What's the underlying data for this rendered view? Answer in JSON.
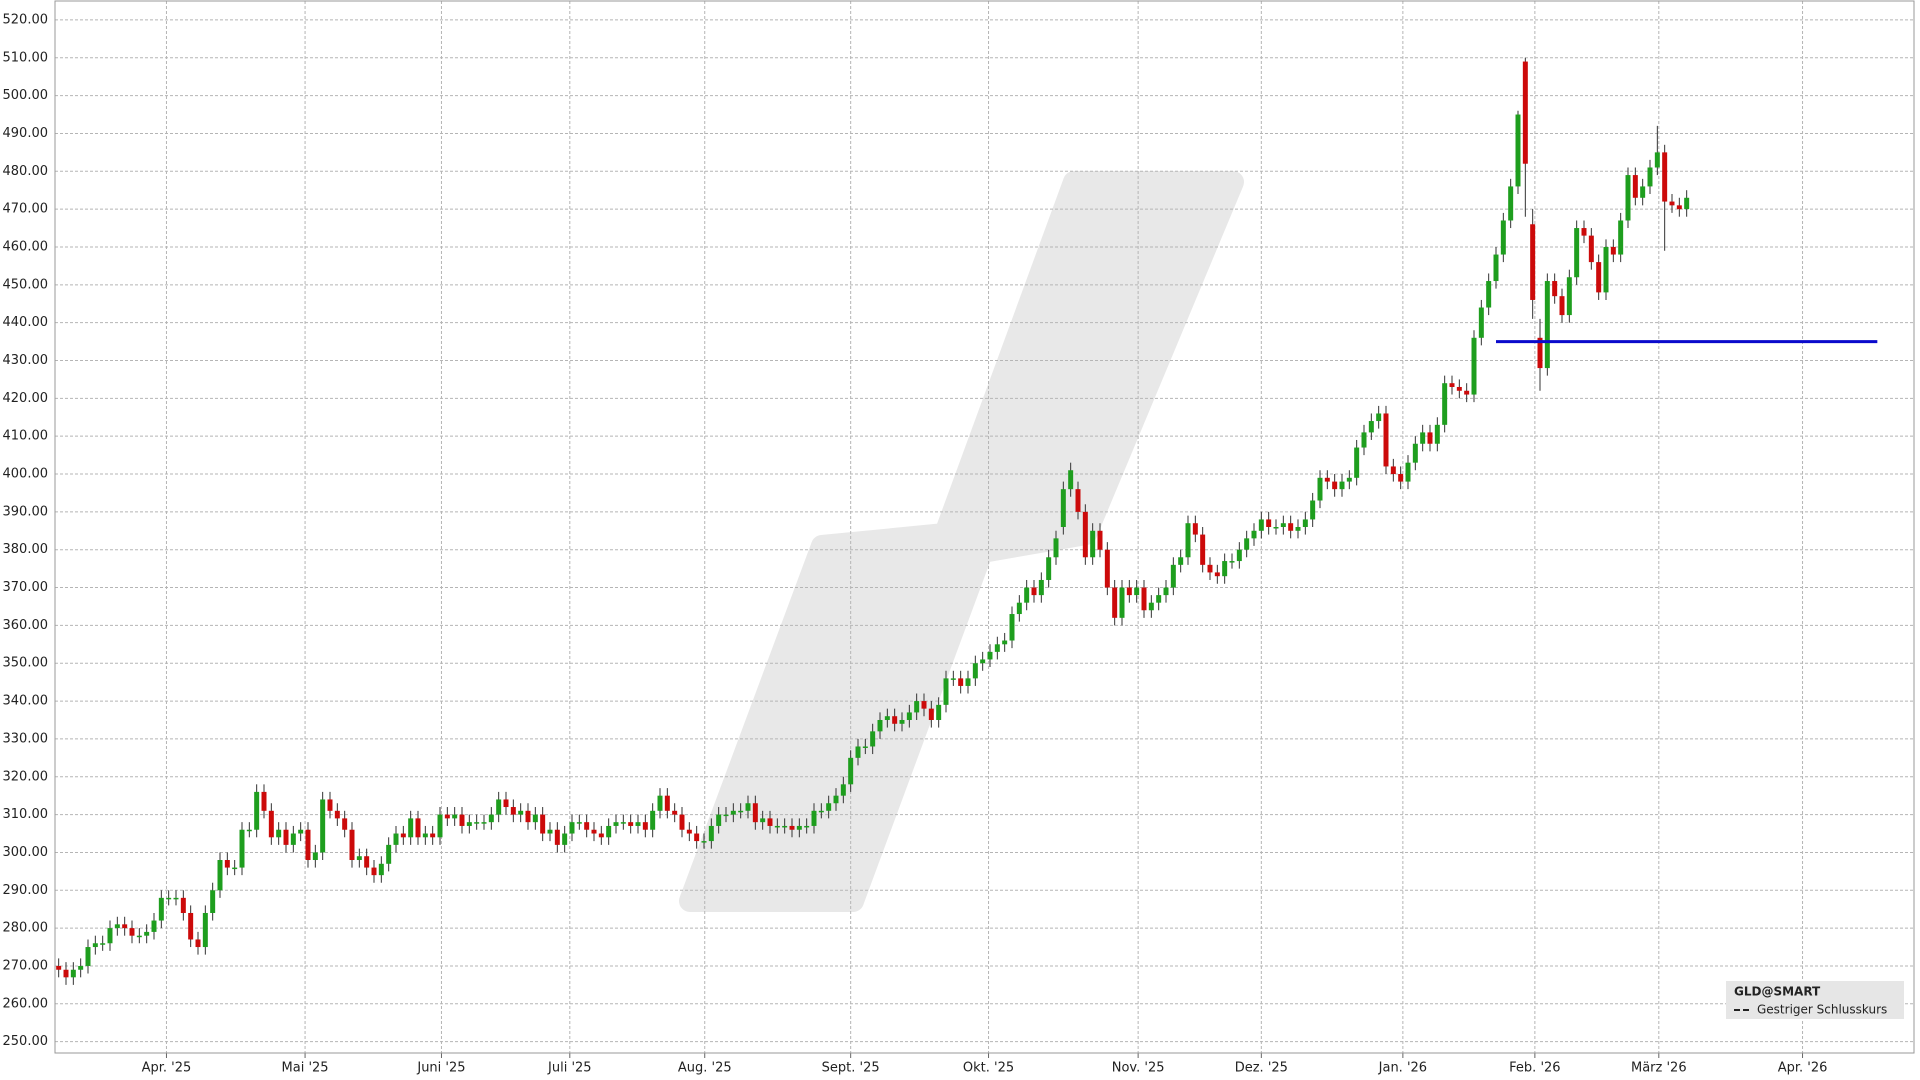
{
  "chart_data": {
    "type": "candlestick",
    "up_color": "#1e9e1e",
    "down_color": "#cc0a0a",
    "wick_color": "#333333",
    "grid": true,
    "xlim": [
      -0.5,
      253
    ],
    "ylim": [
      247,
      525
    ],
    "yticks": [
      {
        "value": 250,
        "label": "250.00"
      },
      {
        "value": 260,
        "label": "260.00"
      },
      {
        "value": 270,
        "label": "270.00"
      },
      {
        "value": 280,
        "label": "280.00"
      },
      {
        "value": 290,
        "label": "290.00"
      },
      {
        "value": 300,
        "label": "300.00"
      },
      {
        "value": 310,
        "label": "310.00"
      },
      {
        "value": 320,
        "label": "320.00"
      },
      {
        "value": 330,
        "label": "330.00"
      },
      {
        "value": 340,
        "label": "340.00"
      },
      {
        "value": 350,
        "label": "350.00"
      },
      {
        "value": 360,
        "label": "360.00"
      },
      {
        "value": 370,
        "label": "370.00"
      },
      {
        "value": 380,
        "label": "380.00"
      },
      {
        "value": 390,
        "label": "390.00"
      },
      {
        "value": 400,
        "label": "400.00"
      },
      {
        "value": 410,
        "label": "410.00"
      },
      {
        "value": 420,
        "label": "420.00"
      },
      {
        "value": 430,
        "label": "430.00"
      },
      {
        "value": 440,
        "label": "440.00"
      },
      {
        "value": 450,
        "label": "450.00"
      },
      {
        "value": 460,
        "label": "460.00"
      },
      {
        "value": 470,
        "label": "470.00"
      },
      {
        "value": 480,
        "label": "480.00"
      },
      {
        "value": 490,
        "label": "490.00"
      },
      {
        "value": 500,
        "label": "500.00"
      },
      {
        "value": 510,
        "label": "510.00"
      },
      {
        "value": 520,
        "label": "520.00"
      }
    ],
    "xticks": [
      {
        "value": 14.7,
        "label": "Apr. '25"
      },
      {
        "value": 33.6,
        "label": "Mai '25"
      },
      {
        "value": 52.2,
        "label": "Juni '25"
      },
      {
        "value": 69.7,
        "label": "Juli '25"
      },
      {
        "value": 88.1,
        "label": "Aug. '25"
      },
      {
        "value": 108.0,
        "label": "Sept. '25"
      },
      {
        "value": 126.8,
        "label": "Okt. '25"
      },
      {
        "value": 147.2,
        "label": "Nov. '25"
      },
      {
        "value": 164.0,
        "label": "Dez. '25"
      },
      {
        "value": 183.3,
        "label": "Jan. '26"
      },
      {
        "value": 201.3,
        "label": "Feb. '26"
      },
      {
        "value": 218.2,
        "label": "März '26"
      },
      {
        "value": 237.8,
        "label": "Apr. '26"
      }
    ],
    "open": [
      270,
      269,
      267,
      269,
      270,
      275,
      276,
      276,
      280,
      281,
      280,
      278,
      278,
      279,
      282,
      288,
      288,
      288,
      284,
      277,
      275,
      284,
      290,
      298,
      296,
      296,
      306,
      306,
      316,
      311,
      304,
      306,
      302,
      305,
      306,
      298,
      300,
      314,
      311,
      309,
      306,
      298,
      299,
      296,
      294,
      297,
      302,
      305,
      304,
      309,
      304,
      305,
      304,
      310,
      309,
      310,
      307,
      308,
      308,
      308,
      310,
      314,
      312,
      310,
      311,
      308,
      310,
      305,
      306,
      302,
      305,
      308,
      308,
      306,
      305,
      304,
      307,
      308,
      308,
      307,
      308,
      306,
      311,
      315,
      311,
      310,
      306,
      305,
      303,
      303,
      307,
      310,
      310,
      311,
      311,
      313,
      308,
      309,
      307,
      307,
      307,
      306,
      307,
      307,
      311,
      311,
      313,
      315,
      318,
      325,
      328,
      328,
      332,
      335,
      336,
      334,
      335,
      337,
      340,
      338,
      335,
      339,
      346,
      346,
      344,
      346,
      350,
      351,
      353,
      355,
      356,
      363,
      366,
      370,
      368,
      372,
      378,
      386,
      396,
      396,
      390,
      378,
      385,
      380,
      370,
      362,
      370,
      368,
      370,
      364,
      366,
      368,
      370,
      376,
      378,
      387,
      384,
      376,
      374,
      373,
      377,
      377,
      380,
      383,
      385,
      388,
      386,
      386,
      387,
      385,
      386,
      388,
      393,
      399,
      398,
      396,
      398,
      399,
      407,
      411,
      414,
      416,
      402,
      400,
      398,
      403,
      408,
      411,
      408,
      413,
      424,
      423,
      422,
      421,
      436,
      444,
      451,
      458,
      467,
      476,
      509,
      466,
      436,
      428,
      451,
      447,
      442,
      452,
      465,
      463,
      456,
      448,
      460,
      458,
      467,
      479,
      473,
      476,
      481,
      485,
      472,
      471,
      470
    ],
    "high": [
      272,
      271,
      271,
      272,
      277,
      278,
      278,
      282,
      283,
      283,
      282,
      280,
      281,
      284,
      290,
      290,
      290,
      290,
      286,
      279,
      286,
      292,
      300,
      300,
      298,
      308,
      308,
      318,
      318,
      313,
      308,
      308,
      307,
      308,
      308,
      302,
      316,
      316,
      313,
      311,
      308,
      301,
      301,
      298,
      299,
      304,
      307,
      307,
      311,
      311,
      307,
      307,
      312,
      312,
      312,
      312,
      310,
      310,
      310,
      312,
      316,
      316,
      314,
      313,
      313,
      312,
      312,
      308,
      308,
      307,
      310,
      310,
      310,
      308,
      307,
      309,
      310,
      310,
      310,
      310,
      310,
      313,
      317,
      317,
      313,
      312,
      308,
      307,
      305,
      309,
      312,
      312,
      313,
      313,
      315,
      315,
      311,
      311,
      309,
      309,
      309,
      309,
      309,
      313,
      313,
      315,
      317,
      320,
      327,
      330,
      330,
      334,
      337,
      338,
      338,
      337,
      339,
      342,
      342,
      340,
      341,
      348,
      348,
      348,
      348,
      352,
      353,
      355,
      357,
      358,
      365,
      368,
      372,
      372,
      374,
      380,
      385,
      398,
      403,
      398,
      392,
      387,
      387,
      382,
      372,
      372,
      372,
      372,
      372,
      368,
      370,
      372,
      378,
      380,
      389,
      389,
      386,
      378,
      376,
      379,
      379,
      382,
      385,
      387,
      390,
      390,
      388,
      389,
      389,
      388,
      390,
      395,
      401,
      401,
      400,
      400,
      401,
      409,
      413,
      416,
      418,
      418,
      404,
      402,
      405,
      410,
      413,
      413,
      415,
      426,
      426,
      425,
      424,
      438,
      446,
      453,
      460,
      469,
      478,
      496,
      510,
      470,
      441,
      453,
      453,
      449,
      454,
      467,
      467,
      465,
      458,
      462,
      462,
      469,
      481,
      481,
      478,
      483,
      492,
      487,
      474,
      473,
      475
    ],
    "low": [
      267,
      265,
      265,
      267,
      268,
      273,
      274,
      274,
      278,
      278,
      276,
      276,
      276,
      277,
      280,
      286,
      286,
      282,
      275,
      273,
      273,
      282,
      288,
      294,
      294,
      294,
      304,
      304,
      309,
      302,
      302,
      300,
      300,
      303,
      296,
      296,
      298,
      309,
      307,
      304,
      296,
      296,
      294,
      292,
      292,
      295,
      300,
      302,
      302,
      302,
      302,
      302,
      302,
      307,
      307,
      305,
      305,
      306,
      306,
      306,
      308,
      310,
      308,
      308,
      306,
      306,
      303,
      303,
      300,
      300,
      303,
      306,
      304,
      303,
      302,
      302,
      305,
      306,
      305,
      305,
      304,
      304,
      309,
      309,
      308,
      304,
      303,
      301,
      301,
      301,
      305,
      308,
      308,
      309,
      309,
      306,
      306,
      305,
      305,
      305,
      304,
      304,
      305,
      305,
      309,
      309,
      311,
      313,
      316,
      323,
      326,
      326,
      330,
      333,
      332,
      332,
      333,
      335,
      336,
      333,
      333,
      337,
      344,
      342,
      342,
      344,
      348,
      349,
      351,
      353,
      354,
      361,
      364,
      366,
      366,
      370,
      376,
      384,
      394,
      388,
      376,
      376,
      378,
      368,
      360,
      360,
      366,
      366,
      362,
      362,
      364,
      366,
      368,
      374,
      376,
      382,
      374,
      372,
      371,
      371,
      375,
      375,
      378,
      381,
      383,
      384,
      384,
      384,
      383,
      383,
      384,
      386,
      391,
      396,
      394,
      394,
      396,
      397,
      405,
      409,
      412,
      400,
      398,
      396,
      396,
      401,
      406,
      406,
      406,
      411,
      421,
      420,
      419,
      419,
      434,
      442,
      449,
      456,
      465,
      474,
      468,
      441,
      422,
      426,
      445,
      440,
      440,
      450,
      461,
      454,
      446,
      446,
      456,
      456,
      465,
      471,
      471,
      474,
      479,
      459,
      469,
      468,
      468
    ],
    "close": [
      269,
      267,
      269,
      270,
      275,
      276,
      276,
      280,
      281,
      280,
      278,
      278,
      279,
      282,
      288,
      288,
      288,
      284,
      277,
      275,
      284,
      290,
      298,
      296,
      296,
      306,
      306,
      316,
      311,
      304,
      306,
      302,
      305,
      306,
      298,
      300,
      314,
      311,
      309,
      306,
      298,
      299,
      296,
      294,
      297,
      302,
      305,
      304,
      309,
      304,
      305,
      304,
      310,
      309,
      310,
      307,
      308,
      308,
      308,
      310,
      314,
      312,
      310,
      311,
      308,
      310,
      305,
      306,
      302,
      305,
      308,
      308,
      306,
      305,
      304,
      307,
      308,
      308,
      307,
      308,
      306,
      311,
      315,
      311,
      310,
      306,
      305,
      303,
      303,
      307,
      310,
      310,
      311,
      311,
      313,
      308,
      309,
      307,
      307,
      307,
      306,
      307,
      307,
      311,
      311,
      313,
      315,
      318,
      325,
      328,
      328,
      332,
      335,
      336,
      334,
      335,
      337,
      340,
      338,
      335,
      339,
      346,
      346,
      344,
      346,
      350,
      351,
      353,
      355,
      356,
      363,
      366,
      370,
      368,
      372,
      378,
      383,
      396,
      401,
      390,
      378,
      385,
      380,
      370,
      362,
      370,
      368,
      370,
      364,
      366,
      368,
      370,
      376,
      378,
      387,
      384,
      376,
      374,
      373,
      377,
      377,
      380,
      383,
      385,
      388,
      386,
      386,
      387,
      385,
      386,
      388,
      393,
      399,
      398,
      396,
      398,
      399,
      407,
      411,
      414,
      416,
      402,
      400,
      398,
      403,
      408,
      411,
      408,
      413,
      424,
      423,
      422,
      421,
      436,
      444,
      451,
      458,
      467,
      476,
      495,
      482,
      446,
      428,
      451,
      447,
      442,
      452,
      465,
      463,
      456,
      448,
      460,
      458,
      467,
      479,
      473,
      476,
      481,
      485,
      472,
      471,
      470,
      473
    ],
    "levels": [
      {
        "value": 435,
        "from": 196,
        "to": 248,
        "color": "#0a0acc"
      }
    ],
    "legend": {
      "title": "GLD@SMART",
      "entry": "Gestriger Schlusskurs"
    }
  }
}
